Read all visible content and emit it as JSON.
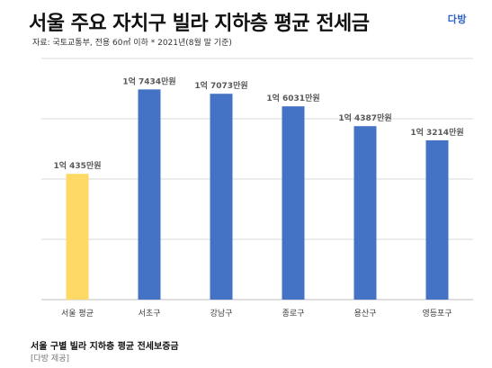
{
  "header": {
    "title": "서울 주요 자치구 빌라 지하층 평균 전세금",
    "source": "자료: 국토교통부, 전용 60㎡ 이하 * 2021년(8월 말 기준)",
    "logo": "다방"
  },
  "footer": {
    "caption": "서울 구별 빌라 지하층 평균 전세보증금",
    "credit": "[다방 제공]"
  },
  "chart_data": {
    "type": "bar",
    "title": "서울 주요 자치구 빌라 지하층 평균 전세금",
    "xlabel": "",
    "ylabel": "",
    "categories": [
      "서울 평균",
      "서초구",
      "강남구",
      "종로구",
      "용산구",
      "영등포구"
    ],
    "values": [
      10435,
      17434,
      17073,
      16031,
      14387,
      13214
    ],
    "value_labels": [
      "1억 435만원",
      "1억 7434만원",
      "1억 7073만원",
      "1억 6031만원",
      "1억 4387만원",
      "1억 3214만원"
    ],
    "bar_colors": [
      "#ffd966",
      "#4472c4",
      "#4472c4",
      "#4472c4",
      "#4472c4",
      "#4472c4"
    ],
    "ylim": [
      0,
      20000
    ],
    "grid": true,
    "legend": "none"
  }
}
